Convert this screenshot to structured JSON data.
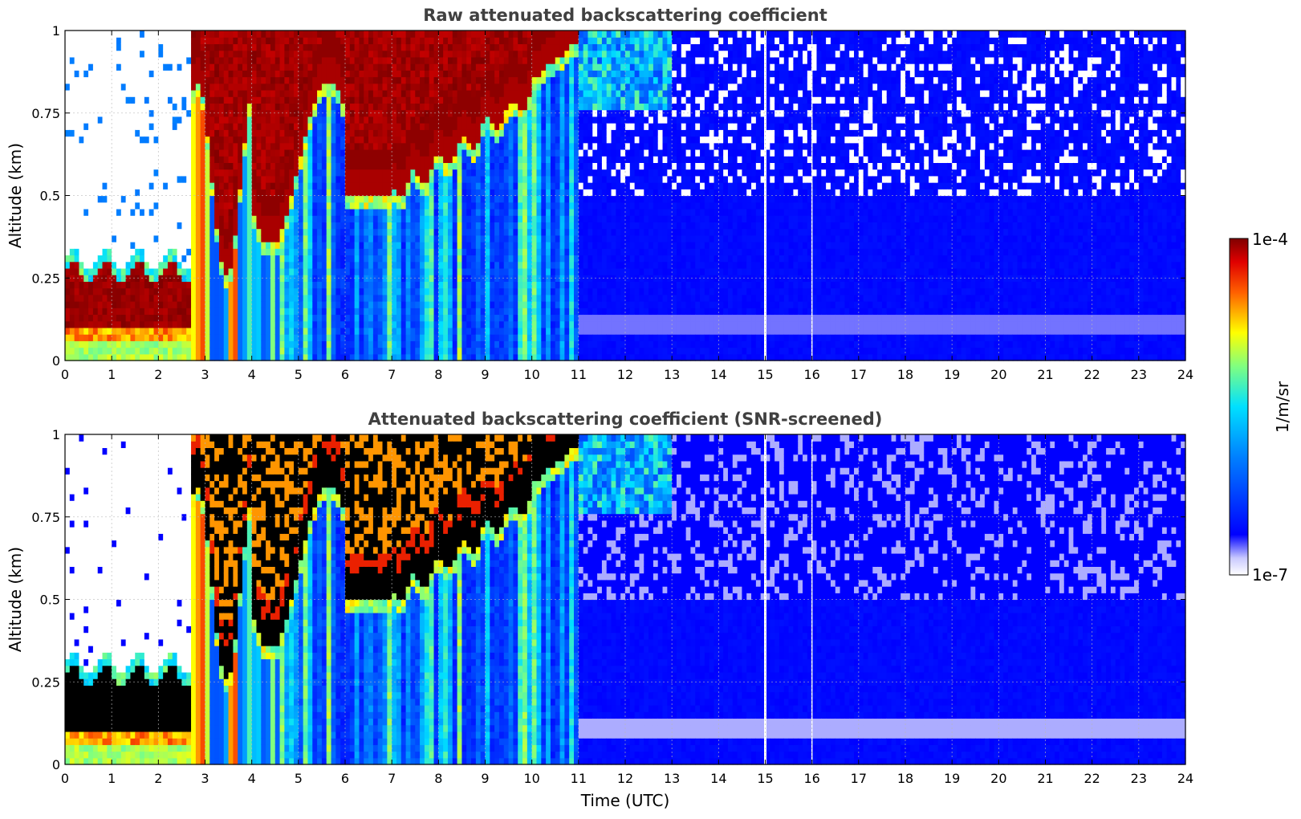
{
  "figure": {
    "colorbar": {
      "max_label": "1e-4",
      "min_label": "1e-7",
      "unit_label": "1/m/sr",
      "scale": "log",
      "vmin": 1e-07,
      "vmax": 0.0001,
      "colormap": "jet"
    }
  },
  "chart_data": [
    {
      "type": "heatmap",
      "title": "Raw attenuated backscattering coefficient",
      "xlabel": "",
      "ylabel": "Altitude (km)",
      "xlim": [
        0,
        24
      ],
      "ylim": [
        0,
        1
      ],
      "x_ticks": [
        "0",
        "1",
        "2",
        "3",
        "4",
        "5",
        "6",
        "7",
        "8",
        "9",
        "10",
        "11",
        "12",
        "13",
        "14",
        "15",
        "16",
        "17",
        "18",
        "19",
        "20",
        "21",
        "22",
        "23",
        "24"
      ],
      "y_ticks": [
        "0",
        "0.25",
        "0.5",
        "0.75",
        "1"
      ],
      "grid": true,
      "screened": false,
      "layers": [
        {
          "name": "boundary-layer-aerosol",
          "x_range": [
            0,
            2.7
          ],
          "altitude_km": [
            0.05,
            0.3
          ],
          "value": 5e-05
        },
        {
          "name": "cloud-base",
          "x_range": [
            2.7,
            10.6
          ],
          "altitude_km": [
            0.45,
            1.0
          ],
          "value": 0.0001
        },
        {
          "name": "background",
          "x_range": [
            11,
            24
          ],
          "altitude_km": [
            0,
            1
          ],
          "value": 1e-06
        }
      ]
    },
    {
      "type": "heatmap",
      "title": "Attenuated backscattering coefficient (SNR-screened)",
      "xlabel": "Time (UTC)",
      "ylabel": "Altitude (km)",
      "xlim": [
        0,
        24
      ],
      "ylim": [
        0,
        1
      ],
      "x_ticks": [
        "0",
        "1",
        "2",
        "3",
        "4",
        "5",
        "6",
        "7",
        "8",
        "9",
        "10",
        "11",
        "12",
        "13",
        "14",
        "15",
        "16",
        "17",
        "18",
        "19",
        "20",
        "21",
        "22",
        "23",
        "24"
      ],
      "y_ticks": [
        "0",
        "0.25",
        "0.5",
        "0.75",
        "1"
      ],
      "grid": true,
      "screened": true,
      "layers": [
        {
          "name": "boundary-layer-aerosol",
          "x_range": [
            0,
            2.7
          ],
          "altitude_km": [
            0.05,
            0.3
          ],
          "value": 0.0001
        },
        {
          "name": "cloud-base",
          "x_range": [
            2.7,
            10.6
          ],
          "altitude_km": [
            0.45,
            1.0
          ],
          "value": 0.0001
        },
        {
          "name": "background",
          "x_range": [
            11,
            24
          ],
          "altitude_km": [
            0,
            1
          ],
          "value": 1e-06
        }
      ]
    }
  ]
}
